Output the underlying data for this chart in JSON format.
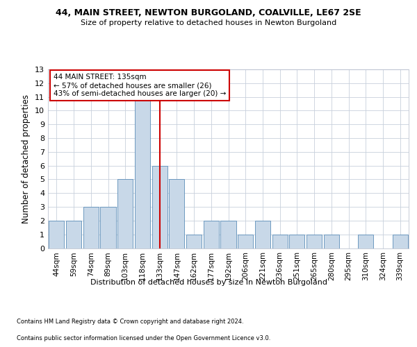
{
  "title1": "44, MAIN STREET, NEWTON BURGOLAND, COALVILLE, LE67 2SE",
  "title2": "Size of property relative to detached houses in Newton Burgoland",
  "xlabel": "Distribution of detached houses by size in Newton Burgoland",
  "ylabel": "Number of detached properties",
  "categories": [
    "44sqm",
    "59sqm",
    "74sqm",
    "89sqm",
    "103sqm",
    "118sqm",
    "133sqm",
    "147sqm",
    "162sqm",
    "177sqm",
    "192sqm",
    "206sqm",
    "221sqm",
    "236sqm",
    "251sqm",
    "265sqm",
    "280sqm",
    "295sqm",
    "310sqm",
    "324sqm",
    "339sqm"
  ],
  "values": [
    2,
    2,
    3,
    3,
    5,
    11,
    6,
    5,
    1,
    2,
    2,
    1,
    2,
    1,
    1,
    1,
    1,
    0,
    1,
    0,
    1
  ],
  "bar_color": "#c8d8e8",
  "bar_edge_color": "#5b8db8",
  "highlight_index": 6,
  "highlight_line_color": "#cc0000",
  "annotation_text": "44 MAIN STREET: 135sqm\n← 57% of detached houses are smaller (26)\n43% of semi-detached houses are larger (20) →",
  "annotation_box_color": "#ffffff",
  "annotation_box_edge": "#cc0000",
  "ylim": [
    0,
    13
  ],
  "yticks": [
    0,
    1,
    2,
    3,
    4,
    5,
    6,
    7,
    8,
    9,
    10,
    11,
    12,
    13
  ],
  "footer1": "Contains HM Land Registry data © Crown copyright and database right 2024.",
  "footer2": "Contains public sector information licensed under the Open Government Licence v3.0.",
  "background_color": "#ffffff",
  "grid_color": "#c8d0dc"
}
